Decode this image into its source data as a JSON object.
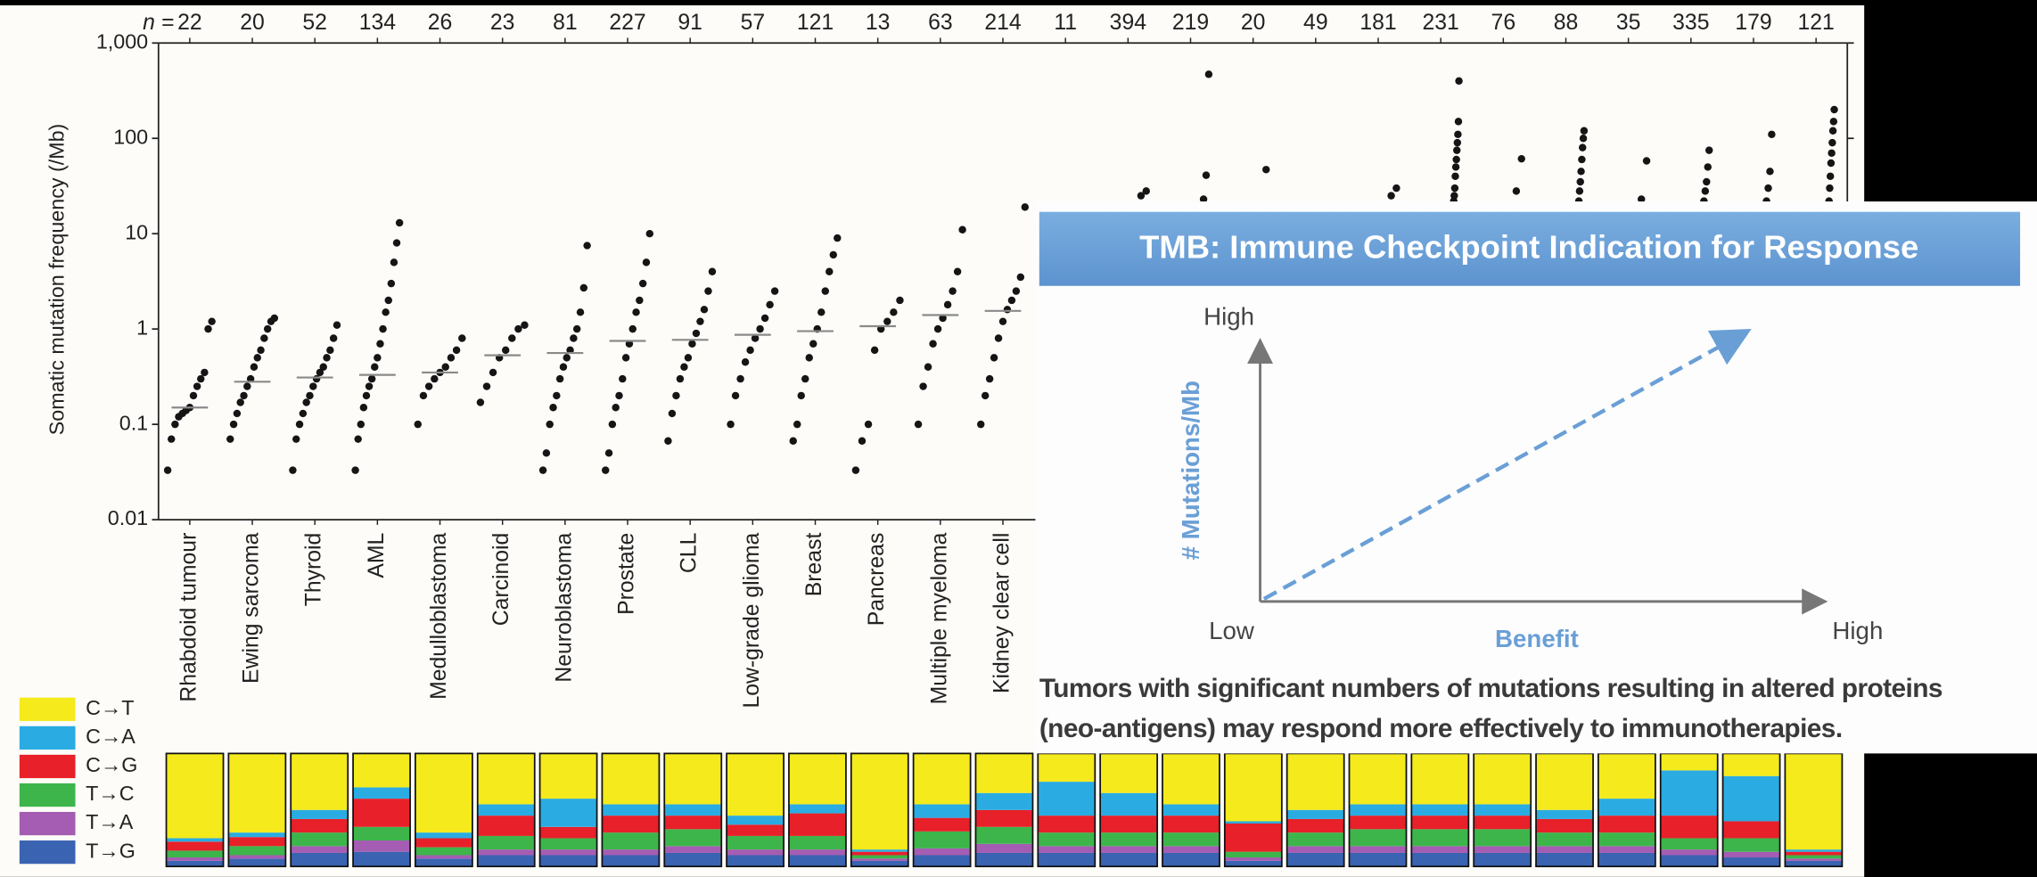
{
  "chart_data": [
    {
      "type": "strip",
      "y_label": "Somatic mutation frequency (/Mb)",
      "n_label": "n =",
      "n": [
        22,
        20,
        52,
        134,
        26,
        23,
        81,
        227,
        91,
        57,
        121,
        13,
        63,
        214,
        11,
        394,
        219,
        20,
        49,
        181,
        231,
        76,
        88,
        35,
        335,
        179,
        121
      ],
      "categories": [
        "Rhabdoid tumour",
        "Ewing sarcoma",
        "Thyroid",
        "AML",
        "Medulloblastoma",
        "Carcinoid",
        "Neuroblastoma",
        "Prostate",
        "CLL",
        "Low-grade glioma",
        "Breast",
        "Pancreas",
        "Multiple myeloma",
        "Kidney clear cell",
        null,
        null,
        null,
        null,
        null,
        null,
        null,
        null,
        null,
        null,
        null,
        null,
        null
      ],
      "values": [
        [
          0.033,
          0.07,
          0.1,
          0.12,
          0.13,
          0.14,
          0.15,
          0.2,
          0.25,
          0.3,
          0.35,
          1.0,
          1.2
        ],
        [
          0.07,
          0.1,
          0.13,
          0.17,
          0.2,
          0.25,
          0.3,
          0.4,
          0.5,
          0.6,
          0.8,
          1.0,
          1.2,
          1.3
        ],
        [
          0.033,
          0.07,
          0.1,
          0.13,
          0.17,
          0.2,
          0.25,
          0.3,
          0.35,
          0.4,
          0.5,
          0.6,
          0.8,
          1.1
        ],
        [
          0.033,
          0.07,
          0.1,
          0.15,
          0.2,
          0.25,
          0.3,
          0.4,
          0.5,
          0.7,
          1,
          1.5,
          2,
          3,
          5,
          8,
          13
        ],
        [
          0.1,
          0.2,
          0.25,
          0.3,
          0.35,
          0.4,
          0.5,
          0.6,
          0.8
        ],
        [
          0.17,
          0.25,
          0.35,
          0.5,
          0.6,
          0.8,
          1.0,
          1.1
        ],
        [
          0.033,
          0.05,
          0.1,
          0.15,
          0.2,
          0.3,
          0.4,
          0.5,
          0.6,
          0.8,
          1,
          1.5,
          2.7,
          7.5
        ],
        [
          0.033,
          0.05,
          0.1,
          0.15,
          0.2,
          0.3,
          0.5,
          0.7,
          1,
          1.5,
          2,
          3,
          5,
          10
        ],
        [
          0.067,
          0.13,
          0.2,
          0.3,
          0.4,
          0.5,
          0.7,
          0.9,
          1.2,
          1.6,
          2.5,
          4
        ],
        [
          0.1,
          0.2,
          0.3,
          0.45,
          0.6,
          0.8,
          1,
          1.3,
          1.8,
          2.5
        ],
        [
          0.067,
          0.1,
          0.2,
          0.3,
          0.5,
          0.7,
          1,
          1.5,
          2.5,
          4,
          6,
          9
        ],
        [
          0.033,
          0.067,
          0.1,
          0.6,
          1,
          1.2,
          1.5,
          2
        ],
        [
          0.1,
          0.25,
          0.4,
          0.7,
          1,
          1.3,
          1.8,
          2.5,
          4,
          11
        ],
        [
          0.1,
          0.2,
          0.3,
          0.5,
          0.8,
          1.2,
          1.6,
          2,
          2.5,
          3.5,
          19
        ],
        [],
        [
          25,
          28
        ],
        [
          23,
          41,
          470
        ],
        [
          47
        ],
        [],
        [
          25,
          30
        ],
        [
          22,
          25,
          30,
          40,
          50,
          60,
          75,
          90,
          110,
          150,
          400
        ],
        [
          28,
          61
        ],
        [
          22,
          28,
          35,
          45,
          60,
          80,
          100,
          120
        ],
        [
          23,
          58
        ],
        [
          22,
          28,
          35,
          50,
          75
        ],
        [
          22,
          30,
          45,
          110
        ],
        [
          22,
          30,
          40,
          55,
          70,
          90,
          120,
          150,
          200
        ]
      ],
      "medians": [
        0.15,
        0.28,
        0.31,
        0.33,
        0.35,
        0.53,
        0.56,
        0.75,
        0.77,
        0.87,
        0.95,
        1.07,
        1.4,
        1.55,
        null,
        null,
        null,
        null,
        null,
        null,
        null,
        null,
        null,
        null,
        null,
        null,
        null
      ],
      "color": "#151515",
      "median_color": "#8a8a8a",
      "log_scale": true,
      "ylim": [
        0.01,
        1000
      ],
      "yticks": [
        0.01,
        0.1,
        1,
        10,
        100,
        {
          "value": 1000,
          "label": "1,000"
        }
      ]
    },
    {
      "type": "stacked_bar",
      "series": [
        {
          "name": "C→T",
          "color": "#f4ea1c",
          "values": [
            75,
            70,
            50,
            30,
            70,
            45,
            40,
            45,
            45,
            55,
            45,
            85,
            45,
            35,
            25,
            35,
            45,
            60,
            50,
            45,
            45,
            45,
            50,
            40,
            15,
            20,
            85
          ]
        },
        {
          "name": "C→A",
          "color": "#2aace2",
          "values": [
            3,
            4,
            8,
            10,
            5,
            10,
            25,
            10,
            10,
            8,
            8,
            2,
            12,
            15,
            30,
            20,
            10,
            2,
            8,
            10,
            10,
            10,
            8,
            15,
            40,
            40,
            2
          ]
        },
        {
          "name": "C→G",
          "color": "#e8202a",
          "values": [
            8,
            8,
            12,
            25,
            8,
            18,
            10,
            15,
            12,
            10,
            20,
            3,
            12,
            15,
            15,
            15,
            15,
            25,
            12,
            12,
            12,
            12,
            12,
            15,
            20,
            15,
            3
          ]
        },
        {
          "name": "T→C",
          "color": "#3db54a",
          "values": [
            6,
            8,
            12,
            12,
            7,
            12,
            10,
            15,
            15,
            12,
            12,
            3,
            15,
            15,
            12,
            12,
            12,
            5,
            12,
            15,
            15,
            15,
            12,
            12,
            10,
            12,
            3
          ]
        },
        {
          "name": "T→A",
          "color": "#a45db2",
          "values": [
            3,
            3,
            6,
            10,
            3,
            5,
            5,
            5,
            6,
            5,
            5,
            2,
            6,
            8,
            6,
            6,
            6,
            3,
            6,
            6,
            6,
            6,
            6,
            6,
            5,
            5,
            2
          ]
        },
        {
          "name": "T→G",
          "color": "#3a63b2",
          "values": [
            5,
            7,
            12,
            13,
            7,
            10,
            10,
            10,
            12,
            10,
            10,
            5,
            10,
            12,
            12,
            12,
            12,
            5,
            12,
            12,
            12,
            12,
            12,
            12,
            10,
            8,
            5
          ]
        }
      ],
      "ylim": [
        0,
        100
      ]
    }
  ],
  "overlay": {
    "title": "TMB: Immune Checkpoint Indication for Response",
    "y_high": "High",
    "y_label": "# Mutations/Mb",
    "x_low": "Low",
    "x_label": "Benefit",
    "x_high": "High",
    "caption": [
      "Tumors with significant numbers of mutations resulting in altered proteins",
      "(neo-antigens) may respond more effectively to immunotherapies."
    ]
  }
}
